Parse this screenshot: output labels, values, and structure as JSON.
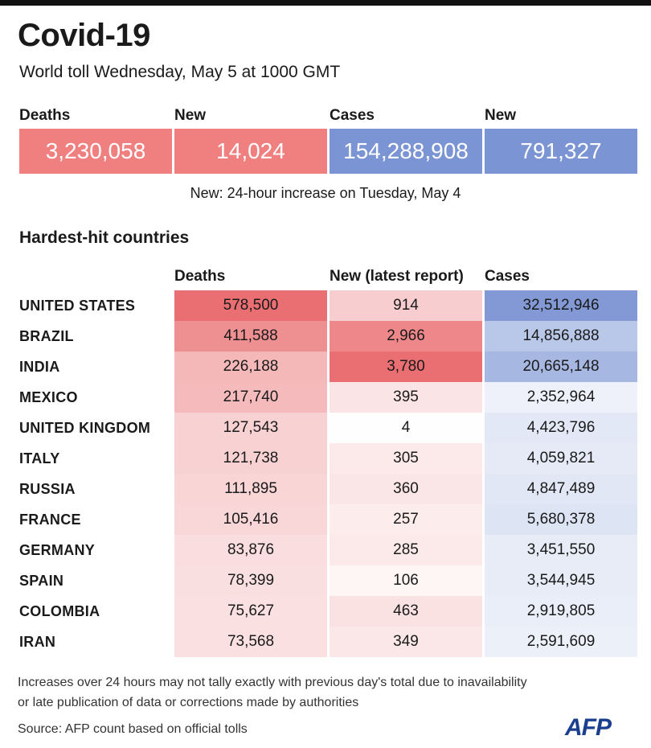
{
  "header": {
    "title": "Covid-19",
    "subtitle": "World toll Wednesday, May 5 at 1000 GMT"
  },
  "summary": {
    "items": [
      {
        "label": "Deaths",
        "value": "3,230,058",
        "color": "#f08080"
      },
      {
        "label": "New",
        "value": "14,024",
        "color": "#f08080"
      },
      {
        "label": "Cases",
        "value": "154,288,908",
        "color": "#7b94d3"
      },
      {
        "label": "New",
        "value": "791,327",
        "color": "#7b94d3"
      }
    ],
    "note": "New: 24-hour increase on Tuesday, May 4"
  },
  "colors": {
    "deaths_scale": "#e8676b",
    "cases_scale": "#7b94d3"
  },
  "section_title": "Hardest-hit countries",
  "chart_data": {
    "type": "table",
    "columns": [
      "Deaths",
      "New (latest report)",
      "Cases"
    ],
    "rows": [
      {
        "country": "UNITED STATES",
        "deaths": "578,500",
        "new": "914",
        "cases": "32,512,946"
      },
      {
        "country": "BRAZIL",
        "deaths": "411,588",
        "new": "2,966",
        "cases": "14,856,888"
      },
      {
        "country": "INDIA",
        "deaths": "226,188",
        "new": "3,780",
        "cases": "20,665,148"
      },
      {
        "country": "MEXICO",
        "deaths": "217,740",
        "new": "395",
        "cases": "2,352,964"
      },
      {
        "country": "UNITED KINGDOM",
        "deaths": "127,543",
        "new": "4",
        "cases": "4,423,796"
      },
      {
        "country": "ITALY",
        "deaths": "121,738",
        "new": "305",
        "cases": "4,059,821"
      },
      {
        "country": "RUSSIA",
        "deaths": "111,895",
        "new": "360",
        "cases": "4,847,489"
      },
      {
        "country": "FRANCE",
        "deaths": "105,416",
        "new": "257",
        "cases": "5,680,378"
      },
      {
        "country": "GERMANY",
        "deaths": "83,876",
        "new": "285",
        "cases": "3,451,550"
      },
      {
        "country": "SPAIN",
        "deaths": "78,399",
        "new": "106",
        "cases": "3,544,945"
      },
      {
        "country": "COLOMBIA",
        "deaths": "75,627",
        "new": "463",
        "cases": "2,919,805"
      },
      {
        "country": "IRAN",
        "deaths": "73,568",
        "new": "349",
        "cases": "2,591,609"
      }
    ]
  },
  "footer": {
    "note_line1": "Increases over 24 hours may not tally exactly with previous day's total due to inavailability",
    "note_line2": "or late publication of data or corrections made by authorities",
    "source": "Source: AFP count based on official tolls",
    "logo": "AFP"
  }
}
